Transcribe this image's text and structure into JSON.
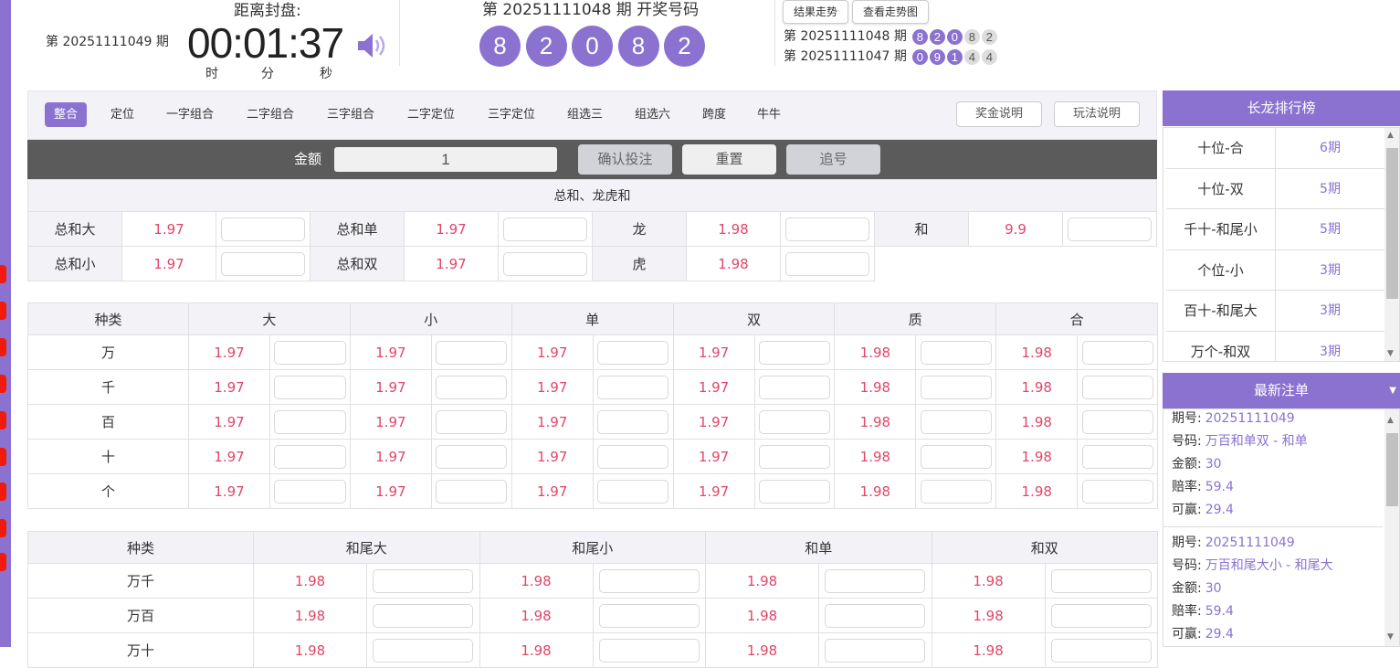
{
  "header": {
    "current_period": "第 20251111049 期",
    "seal_label": "距离封盘:",
    "timer": "00:01:37",
    "units": [
      "时",
      "分",
      "秒"
    ],
    "draw_title": "第 20251111048 期  开奖号码",
    "draw_numbers": [
      "8",
      "2",
      "0",
      "8",
      "2"
    ],
    "buttons": [
      "结果走势",
      "查看走势图"
    ],
    "history": [
      {
        "label": "第 20251111048 期",
        "balls": [
          "8",
          "2",
          "0",
          "8",
          "2"
        ]
      },
      {
        "label": "第 20251111047 期",
        "balls": [
          "0",
          "9",
          "1",
          "4",
          "4"
        ]
      }
    ],
    "accent": "#8b72d0"
  },
  "nav": {
    "tabs": [
      "整合",
      "定位",
      "一字组合",
      "二字组合",
      "三字组合",
      "二字定位",
      "三字定位",
      "组选三",
      "组选六",
      "跨度",
      "牛牛"
    ],
    "active": "整合",
    "right_buttons": [
      "奖金说明",
      "玩法说明"
    ]
  },
  "bet_bar": {
    "amount_label": "金额",
    "amount_value": "1",
    "confirm": "确认投注",
    "reset": "重置",
    "chase": "追号"
  },
  "sum_section": {
    "title": "总和、龙虎和",
    "rows": [
      [
        [
          "总和大",
          "1.97"
        ],
        [
          "总和单",
          "1.97"
        ],
        [
          "龙",
          "1.98"
        ],
        [
          "和",
          "9.9"
        ]
      ],
      [
        [
          "总和小",
          "1.97"
        ],
        [
          "总和双",
          "1.97"
        ],
        [
          "虎",
          "1.98"
        ]
      ]
    ]
  },
  "position_table": {
    "headers": [
      "种类",
      "大",
      "小",
      "单",
      "双",
      "质",
      "合"
    ],
    "rows": [
      {
        "label": "万",
        "odds": [
          "1.97",
          "1.97",
          "1.97",
          "1.97",
          "1.98",
          "1.98"
        ]
      },
      {
        "label": "千",
        "odds": [
          "1.97",
          "1.97",
          "1.97",
          "1.97",
          "1.98",
          "1.98"
        ]
      },
      {
        "label": "百",
        "odds": [
          "1.97",
          "1.97",
          "1.97",
          "1.97",
          "1.98",
          "1.98"
        ]
      },
      {
        "label": "十",
        "odds": [
          "1.97",
          "1.97",
          "1.97",
          "1.97",
          "1.98",
          "1.98"
        ]
      },
      {
        "label": "个",
        "odds": [
          "1.97",
          "1.97",
          "1.97",
          "1.97",
          "1.98",
          "1.98"
        ]
      }
    ]
  },
  "pair_table": {
    "headers": [
      "种类",
      "和尾大",
      "和尾小",
      "和单",
      "和双"
    ],
    "rows": [
      {
        "label": "万千",
        "odds": [
          "1.98",
          "1.98",
          "1.98",
          "1.98"
        ]
      },
      {
        "label": "万百",
        "odds": [
          "1.98",
          "1.98",
          "1.98",
          "1.98"
        ]
      },
      {
        "label": "万十",
        "odds": [
          "1.98",
          "1.98",
          "1.98",
          "1.98"
        ]
      }
    ]
  },
  "dragon_rank": {
    "title": "长龙排行榜",
    "rows": [
      [
        "十位-合",
        "6期"
      ],
      [
        "十位-双",
        "5期"
      ],
      [
        "千十-和尾小",
        "5期"
      ],
      [
        "个位-小",
        "3期"
      ],
      [
        "百十-和尾大",
        "3期"
      ],
      [
        "万个-和双",
        "3期"
      ]
    ]
  },
  "latest_orders": {
    "title": "最新注单",
    "labels": [
      "期号:",
      "号码:",
      "金额:",
      "赔率:",
      "可赢:"
    ],
    "orders": [
      [
        "20251111049",
        "万百和单双 - 和单",
        "30",
        "59.4",
        "29.4"
      ],
      [
        "20251111049",
        "万百和尾大小 - 和尾大",
        "30",
        "59.4",
        "29.4"
      ]
    ]
  }
}
